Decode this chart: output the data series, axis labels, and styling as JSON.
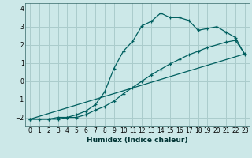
{
  "xlabel": "Humidex (Indice chaleur)",
  "bg_color": "#cce8e8",
  "grid_color": "#aacccc",
  "line_color": "#005f5f",
  "xlim": [
    -0.5,
    23.5
  ],
  "ylim": [
    -2.5,
    4.3
  ],
  "xticks": [
    0,
    1,
    2,
    3,
    4,
    5,
    6,
    7,
    8,
    9,
    10,
    11,
    12,
    13,
    14,
    15,
    16,
    17,
    18,
    19,
    20,
    21,
    22,
    23
  ],
  "yticks": [
    -2,
    -1,
    0,
    1,
    2,
    3,
    4
  ],
  "line1_x": [
    0,
    1,
    2,
    3,
    4,
    5,
    6,
    7,
    8,
    9,
    10,
    11,
    12,
    13,
    14,
    15,
    16,
    17,
    18,
    19,
    20,
    21,
    22,
    23
  ],
  "line1_y": [
    -2.1,
    -2.1,
    -2.1,
    -2.0,
    -2.0,
    -1.85,
    -1.65,
    -1.3,
    -0.6,
    0.7,
    1.65,
    2.2,
    3.05,
    3.3,
    3.75,
    3.5,
    3.5,
    3.35,
    2.8,
    2.9,
    3.0,
    2.7,
    2.4,
    1.45
  ],
  "line2_x": [
    0,
    2,
    3,
    4,
    5,
    6,
    7,
    8,
    9,
    10,
    11,
    12,
    13,
    14,
    15,
    16,
    17,
    18,
    19,
    21,
    22,
    23
  ],
  "line2_y": [
    -2.1,
    -2.1,
    -2.1,
    -2.0,
    -2.0,
    -1.85,
    -1.6,
    -1.4,
    -1.1,
    -0.7,
    -0.35,
    0.0,
    0.35,
    0.65,
    0.95,
    1.2,
    1.45,
    1.65,
    1.85,
    2.15,
    2.25,
    1.5
  ],
  "line3_x": [
    0,
    23
  ],
  "line3_y": [
    -2.1,
    1.5
  ]
}
